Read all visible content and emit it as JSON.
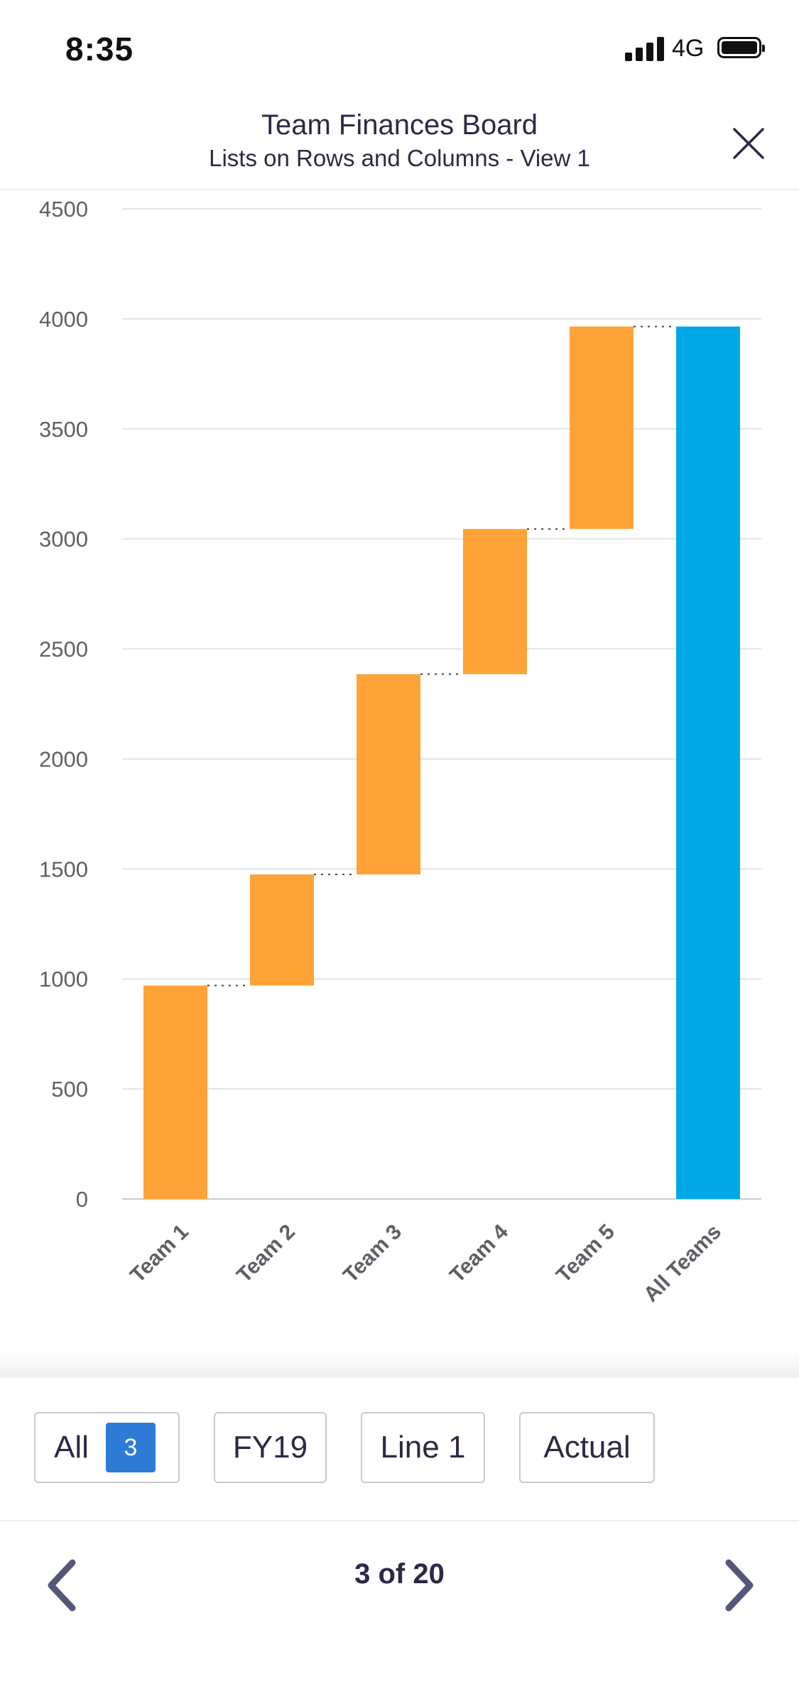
{
  "status_bar": {
    "time": "8:35",
    "network": "4G"
  },
  "header": {
    "title": "Team Finances Board",
    "subtitle": "Lists on Rows and Columns - View 1"
  },
  "chart_data": {
    "type": "bar",
    "variant": "waterfall",
    "categories": [
      "Team 1",
      "Team 2",
      "Team 3",
      "Team 4",
      "Team 5",
      "All Teams"
    ],
    "values": [
      970,
      505,
      910,
      660,
      920,
      3965
    ],
    "is_total": [
      false,
      false,
      false,
      false,
      false,
      true
    ],
    "colors": {
      "increase": "#ffa238",
      "total": "#00a8e8",
      "grid": "#e3e3e8",
      "axis": "#c7cbd6"
    },
    "yticks": [
      0,
      500,
      1000,
      1500,
      2000,
      2500,
      3000,
      3500,
      4000,
      4500
    ],
    "ylim": [
      0,
      4500
    ],
    "grid": true,
    "connectors": "dotted"
  },
  "filters": [
    {
      "label": "All",
      "badge": "3"
    },
    {
      "label": "FY19"
    },
    {
      "label": "Line 1"
    },
    {
      "label": "Actual"
    }
  ],
  "pager": {
    "text": "3 of 20"
  }
}
